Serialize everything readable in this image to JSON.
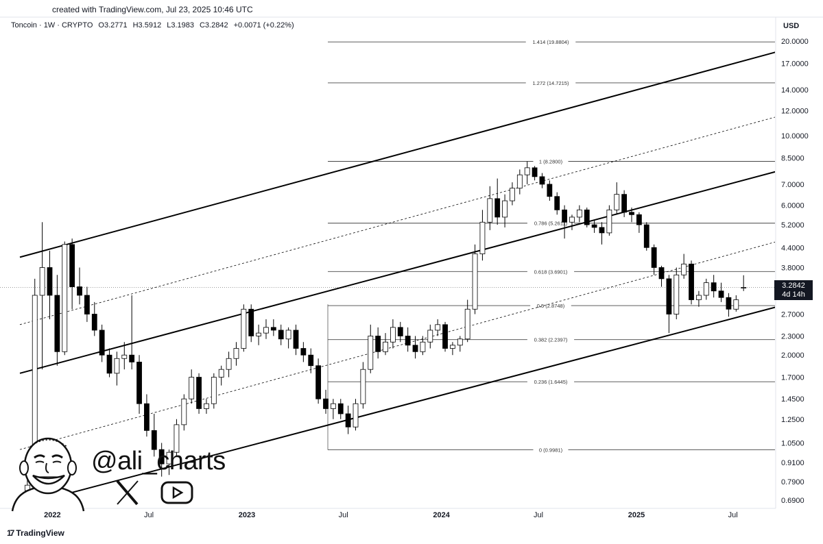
{
  "header": {
    "credit": "created with TradingView.com, Jul 23, 2025 10:46 UTC",
    "symbol": "Toncoin · 1W · CRYPTO",
    "open": "O3.2771",
    "high": "H3.5912",
    "low": "L3.1983",
    "close": "C3.2842",
    "change": "+0.0071 (+0.22%)"
  },
  "axis": {
    "currency": "USD",
    "price_labels": [
      "20.0000",
      "17.0000",
      "14.0000",
      "12.0000",
      "10.0000",
      "8.5000",
      "7.0000",
      "6.0000",
      "5.2000",
      "4.4000",
      "3.8000",
      "2.7000",
      "2.3000",
      "2.0000",
      "1.7000",
      "1.4500",
      "1.2500",
      "1.0500",
      "0.9100",
      "0.7900",
      "0.6900"
    ],
    "time_labels": [
      "2022",
      "Jul",
      "2023",
      "Jul",
      "2024",
      "Jul",
      "2025",
      "Jul"
    ]
  },
  "price_tag": {
    "price": "3.2842",
    "countdown": "4d 14h"
  },
  "watermark": {
    "handle": "@ali_charts"
  },
  "footer": {
    "brand": "TradingView"
  },
  "chart_data": {
    "type": "candlestick",
    "title": "Toncoin · 1W · CRYPTO",
    "ylabel": "USD",
    "y_scale": "log",
    "ylim": [
      0.65,
      21
    ],
    "xlim": [
      "2021-11-01",
      "2025-10-01"
    ],
    "last_price": 3.2842,
    "fibonacci_levels": [
      {
        "ratio": "0",
        "price": 0.9981,
        "label": "0 (0.9981)"
      },
      {
        "ratio": "0.236",
        "price": 1.6445,
        "label": "0.236 (1.6445)"
      },
      {
        "ratio": "0.382",
        "price": 2.2397,
        "label": "0.382 (2.2397)"
      },
      {
        "ratio": "0.5",
        "price": 2.8748,
        "label": "0.5 (2.8748)"
      },
      {
        "ratio": "0.618",
        "price": 3.6901,
        "label": "0.618 (3.6901)"
      },
      {
        "ratio": "0.786",
        "price": 5.2611,
        "label": "0.786 (5.2611)"
      },
      {
        "ratio": "1",
        "price": 8.28,
        "label": "1 (8.2800)"
      },
      {
        "ratio": "1.272",
        "price": 14.7215,
        "label": "1.272 (14.7215)"
      },
      {
        "ratio": "1.414",
        "price": 19.8804,
        "label": "1.414 (19.8804)"
      }
    ],
    "channel_lines": [
      {
        "name": "upper",
        "style": "solid",
        "start": [
          "2021-11-01",
          4.1
        ],
        "end": [
          "2025-09-22",
          18.5
        ]
      },
      {
        "name": "upper-mid",
        "style": "dashed",
        "start": [
          "2021-11-01",
          2.5
        ],
        "end": [
          "2025-09-22",
          11.5
        ]
      },
      {
        "name": "middle",
        "style": "solid",
        "start": [
          "2021-11-01",
          1.75
        ],
        "end": [
          "2025-09-22",
          7.7
        ]
      },
      {
        "name": "lower-mid",
        "style": "dashed",
        "start": [
          "2021-11-01",
          1.0
        ],
        "end": [
          "2025-09-22",
          4.6
        ]
      },
      {
        "name": "lower",
        "style": "solid",
        "start": [
          "2021-11-01",
          0.66
        ],
        "end": [
          "2025-09-22",
          2.85
        ]
      }
    ],
    "candles": [
      {
        "t": "2021-11-15",
        "o": 0.74,
        "h": 0.8,
        "l": 0.66,
        "c": 0.77
      },
      {
        "t": "2021-11-29",
        "o": 0.77,
        "h": 3.5,
        "l": 0.7,
        "c": 3.1
      },
      {
        "t": "2021-12-13",
        "o": 3.1,
        "h": 5.3,
        "l": 1.8,
        "c": 3.8
      },
      {
        "t": "2021-12-27",
        "o": 3.8,
        "h": 4.3,
        "l": 2.6,
        "c": 3.1
      },
      {
        "t": "2022-01-10",
        "o": 3.1,
        "h": 3.6,
        "l": 1.85,
        "c": 2.05
      },
      {
        "t": "2022-01-24",
        "o": 2.05,
        "h": 4.6,
        "l": 2.0,
        "c": 4.5
      },
      {
        "t": "2022-02-07",
        "o": 4.5,
        "h": 4.7,
        "l": 2.8,
        "c": 3.3
      },
      {
        "t": "2022-02-21",
        "o": 3.3,
        "h": 3.8,
        "l": 2.9,
        "c": 3.1
      },
      {
        "t": "2022-03-07",
        "o": 3.1,
        "h": 3.3,
        "l": 2.55,
        "c": 2.7
      },
      {
        "t": "2022-03-21",
        "o": 2.7,
        "h": 2.95,
        "l": 2.3,
        "c": 2.4
      },
      {
        "t": "2022-04-04",
        "o": 2.4,
        "h": 2.5,
        "l": 1.9,
        "c": 2.0
      },
      {
        "t": "2022-04-18",
        "o": 2.0,
        "h": 2.1,
        "l": 1.7,
        "c": 1.75
      },
      {
        "t": "2022-05-02",
        "o": 1.75,
        "h": 2.05,
        "l": 1.6,
        "c": 1.95
      },
      {
        "t": "2022-05-16",
        "o": 1.95,
        "h": 2.2,
        "l": 1.8,
        "c": 2.0
      },
      {
        "t": "2022-05-30",
        "o": 2.0,
        "h": 3.1,
        "l": 1.8,
        "c": 1.9
      },
      {
        "t": "2022-06-13",
        "o": 1.9,
        "h": 2.0,
        "l": 1.3,
        "c": 1.4
      },
      {
        "t": "2022-06-27",
        "o": 1.4,
        "h": 1.5,
        "l": 1.1,
        "c": 1.15
      },
      {
        "t": "2022-07-11",
        "o": 1.15,
        "h": 1.3,
        "l": 0.95,
        "c": 1.0
      },
      {
        "t": "2022-07-25",
        "o": 1.0,
        "h": 1.05,
        "l": 0.82,
        "c": 0.9
      },
      {
        "t": "2022-08-08",
        "o": 0.9,
        "h": 1.0,
        "l": 0.83,
        "c": 0.98
      },
      {
        "t": "2022-08-22",
        "o": 0.98,
        "h": 1.25,
        "l": 0.95,
        "c": 1.2
      },
      {
        "t": "2022-09-05",
        "o": 1.2,
        "h": 1.5,
        "l": 1.15,
        "c": 1.45
      },
      {
        "t": "2022-09-19",
        "o": 1.45,
        "h": 1.8,
        "l": 1.4,
        "c": 1.7
      },
      {
        "t": "2022-10-03",
        "o": 1.7,
        "h": 1.75,
        "l": 1.3,
        "c": 1.35
      },
      {
        "t": "2022-10-17",
        "o": 1.35,
        "h": 1.45,
        "l": 1.3,
        "c": 1.4
      },
      {
        "t": "2022-10-31",
        "o": 1.4,
        "h": 1.75,
        "l": 1.35,
        "c": 1.7
      },
      {
        "t": "2022-11-14",
        "o": 1.7,
        "h": 1.85,
        "l": 1.6,
        "c": 1.8
      },
      {
        "t": "2022-11-28",
        "o": 1.8,
        "h": 2.05,
        "l": 1.7,
        "c": 1.95
      },
      {
        "t": "2022-12-12",
        "o": 1.95,
        "h": 2.2,
        "l": 1.85,
        "c": 2.1
      },
      {
        "t": "2022-12-26",
        "o": 2.1,
        "h": 2.9,
        "l": 2.05,
        "c": 2.8
      },
      {
        "t": "2023-01-09",
        "o": 2.8,
        "h": 2.9,
        "l": 2.2,
        "c": 2.3
      },
      {
        "t": "2023-01-23",
        "o": 2.3,
        "h": 2.5,
        "l": 2.15,
        "c": 2.35
      },
      {
        "t": "2023-02-06",
        "o": 2.35,
        "h": 2.6,
        "l": 2.25,
        "c": 2.45
      },
      {
        "t": "2023-02-20",
        "o": 2.45,
        "h": 2.6,
        "l": 2.3,
        "c": 2.4
      },
      {
        "t": "2023-03-06",
        "o": 2.4,
        "h": 2.5,
        "l": 2.15,
        "c": 2.25
      },
      {
        "t": "2023-03-20",
        "o": 2.25,
        "h": 2.45,
        "l": 2.1,
        "c": 2.4
      },
      {
        "t": "2023-04-03",
        "o": 2.4,
        "h": 2.5,
        "l": 2.0,
        "c": 2.1
      },
      {
        "t": "2023-04-17",
        "o": 2.1,
        "h": 2.2,
        "l": 1.9,
        "c": 2.0
      },
      {
        "t": "2023-05-01",
        "o": 2.0,
        "h": 2.1,
        "l": 1.75,
        "c": 1.85
      },
      {
        "t": "2023-05-15",
        "o": 1.85,
        "h": 1.95,
        "l": 1.4,
        "c": 1.45
      },
      {
        "t": "2023-05-29",
        "o": 1.45,
        "h": 1.55,
        "l": 1.3,
        "c": 1.35
      },
      {
        "t": "2023-06-12",
        "o": 1.35,
        "h": 1.45,
        "l": 1.25,
        "c": 1.4
      },
      {
        "t": "2023-06-26",
        "o": 1.4,
        "h": 1.45,
        "l": 1.25,
        "c": 1.3
      },
      {
        "t": "2023-07-10",
        "o": 1.3,
        "h": 1.38,
        "l": 1.12,
        "c": 1.18
      },
      {
        "t": "2023-07-24",
        "o": 1.18,
        "h": 1.45,
        "l": 1.15,
        "c": 1.4
      },
      {
        "t": "2023-08-07",
        "o": 1.4,
        "h": 1.9,
        "l": 1.35,
        "c": 1.8
      },
      {
        "t": "2023-08-21",
        "o": 1.8,
        "h": 2.5,
        "l": 1.75,
        "c": 2.3
      },
      {
        "t": "2023-09-04",
        "o": 2.3,
        "h": 2.45,
        "l": 1.95,
        "c": 2.05
      },
      {
        "t": "2023-09-18",
        "o": 2.05,
        "h": 2.35,
        "l": 2.0,
        "c": 2.2
      },
      {
        "t": "2023-10-02",
        "o": 2.2,
        "h": 2.6,
        "l": 2.1,
        "c": 2.45
      },
      {
        "t": "2023-10-16",
        "o": 2.45,
        "h": 2.55,
        "l": 2.2,
        "c": 2.3
      },
      {
        "t": "2023-10-30",
        "o": 2.3,
        "h": 2.45,
        "l": 2.05,
        "c": 2.15
      },
      {
        "t": "2023-11-13",
        "o": 2.15,
        "h": 2.3,
        "l": 1.95,
        "c": 2.05
      },
      {
        "t": "2023-11-27",
        "o": 2.05,
        "h": 2.3,
        "l": 2.0,
        "c": 2.2
      },
      {
        "t": "2023-12-11",
        "o": 2.2,
        "h": 2.5,
        "l": 2.1,
        "c": 2.4
      },
      {
        "t": "2023-12-25",
        "o": 2.4,
        "h": 2.6,
        "l": 2.3,
        "c": 2.5
      },
      {
        "t": "2024-01-08",
        "o": 2.5,
        "h": 2.55,
        "l": 2.05,
        "c": 2.1
      },
      {
        "t": "2024-01-22",
        "o": 2.1,
        "h": 2.2,
        "l": 2.0,
        "c": 2.15
      },
      {
        "t": "2024-02-05",
        "o": 2.15,
        "h": 2.3,
        "l": 2.05,
        "c": 2.25
      },
      {
        "t": "2024-02-19",
        "o": 2.25,
        "h": 3.0,
        "l": 2.2,
        "c": 2.8
      },
      {
        "t": "2024-03-04",
        "o": 2.8,
        "h": 4.5,
        "l": 2.7,
        "c": 4.2
      },
      {
        "t": "2024-03-18",
        "o": 4.2,
        "h": 5.8,
        "l": 4.0,
        "c": 5.3
      },
      {
        "t": "2024-04-01",
        "o": 5.3,
        "h": 6.9,
        "l": 5.0,
        "c": 6.3
      },
      {
        "t": "2024-04-15",
        "o": 6.3,
        "h": 7.3,
        "l": 5.2,
        "c": 5.5
      },
      {
        "t": "2024-04-29",
        "o": 5.5,
        "h": 6.5,
        "l": 5.1,
        "c": 6.2
      },
      {
        "t": "2024-05-13",
        "o": 6.2,
        "h": 7.1,
        "l": 6.0,
        "c": 6.8
      },
      {
        "t": "2024-05-27",
        "o": 6.8,
        "h": 7.8,
        "l": 6.5,
        "c": 7.5
      },
      {
        "t": "2024-06-10",
        "o": 7.5,
        "h": 8.28,
        "l": 7.0,
        "c": 7.9
      },
      {
        "t": "2024-06-24",
        "o": 7.9,
        "h": 8.0,
        "l": 7.2,
        "c": 7.4
      },
      {
        "t": "2024-07-08",
        "o": 7.4,
        "h": 7.6,
        "l": 6.8,
        "c": 7.0
      },
      {
        "t": "2024-07-22",
        "o": 7.0,
        "h": 7.2,
        "l": 6.2,
        "c": 6.4
      },
      {
        "t": "2024-08-05",
        "o": 6.4,
        "h": 6.6,
        "l": 5.6,
        "c": 5.8
      },
      {
        "t": "2024-08-19",
        "o": 5.8,
        "h": 6.0,
        "l": 4.7,
        "c": 5.3
      },
      {
        "t": "2024-09-02",
        "o": 5.3,
        "h": 5.6,
        "l": 5.0,
        "c": 5.5
      },
      {
        "t": "2024-09-16",
        "o": 5.5,
        "h": 6.0,
        "l": 5.3,
        "c": 5.8
      },
      {
        "t": "2024-09-30",
        "o": 5.8,
        "h": 5.9,
        "l": 5.1,
        "c": 5.2
      },
      {
        "t": "2024-10-14",
        "o": 5.2,
        "h": 5.4,
        "l": 4.9,
        "c": 5.1
      },
      {
        "t": "2024-10-28",
        "o": 5.1,
        "h": 5.3,
        "l": 4.5,
        "c": 4.9
      },
      {
        "t": "2024-11-11",
        "o": 4.9,
        "h": 6.0,
        "l": 4.8,
        "c": 5.8
      },
      {
        "t": "2024-11-25",
        "o": 5.8,
        "h": 7.1,
        "l": 5.6,
        "c": 6.5
      },
      {
        "t": "2024-12-09",
        "o": 6.5,
        "h": 6.7,
        "l": 5.5,
        "c": 5.7
      },
      {
        "t": "2024-12-23",
        "o": 5.7,
        "h": 5.9,
        "l": 5.3,
        "c": 5.6
      },
      {
        "t": "2025-01-06",
        "o": 5.6,
        "h": 5.7,
        "l": 4.9,
        "c": 5.2
      },
      {
        "t": "2025-01-20",
        "o": 5.2,
        "h": 5.3,
        "l": 4.3,
        "c": 4.4
      },
      {
        "t": "2025-02-03",
        "o": 4.4,
        "h": 4.5,
        "l": 3.6,
        "c": 3.8
      },
      {
        "t": "2025-02-17",
        "o": 3.8,
        "h": 3.85,
        "l": 3.3,
        "c": 3.5
      },
      {
        "t": "2025-03-03",
        "o": 3.5,
        "h": 3.6,
        "l": 2.35,
        "c": 2.7
      },
      {
        "t": "2025-03-17",
        "o": 2.7,
        "h": 3.8,
        "l": 2.6,
        "c": 3.6
      },
      {
        "t": "2025-03-31",
        "o": 3.6,
        "h": 4.2,
        "l": 3.5,
        "c": 3.9
      },
      {
        "t": "2025-04-14",
        "o": 3.9,
        "h": 4.0,
        "l": 2.9,
        "c": 3.0
      },
      {
        "t": "2025-04-28",
        "o": 3.0,
        "h": 3.2,
        "l": 2.85,
        "c": 3.1
      },
      {
        "t": "2025-05-12",
        "o": 3.1,
        "h": 3.5,
        "l": 3.0,
        "c": 3.4
      },
      {
        "t": "2025-05-26",
        "o": 3.4,
        "h": 3.6,
        "l": 3.05,
        "c": 3.2
      },
      {
        "t": "2025-06-09",
        "o": 3.2,
        "h": 3.4,
        "l": 2.95,
        "c": 3.05
      },
      {
        "t": "2025-06-23",
        "o": 3.05,
        "h": 3.15,
        "l": 2.65,
        "c": 2.8
      },
      {
        "t": "2025-07-07",
        "o": 2.8,
        "h": 3.1,
        "l": 2.75,
        "c": 3.0
      },
      {
        "t": "2025-07-21",
        "o": 3.2771,
        "h": 3.5912,
        "l": 3.1983,
        "c": 3.2842
      }
    ]
  }
}
